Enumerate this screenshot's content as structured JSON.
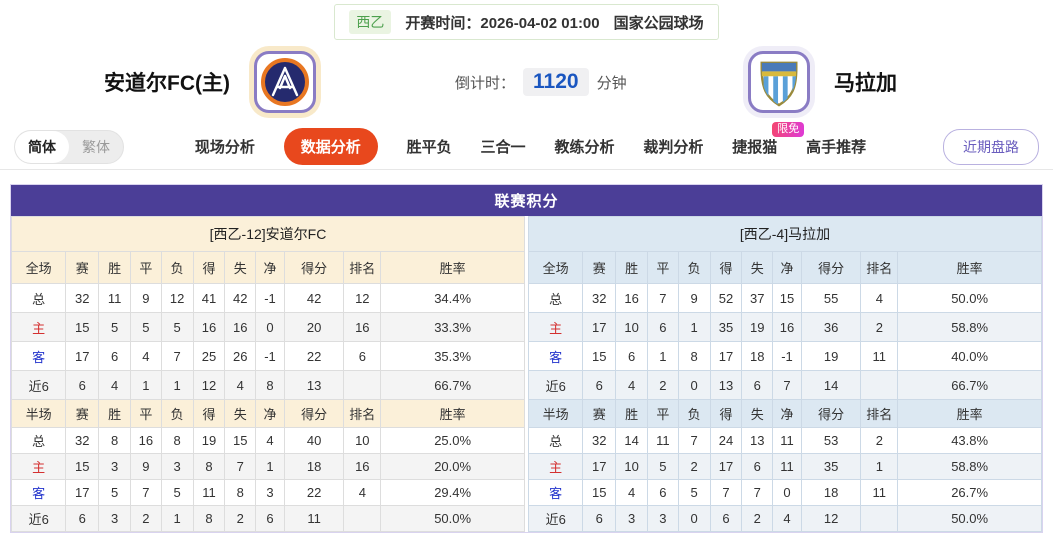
{
  "meta": {
    "league": "西乙",
    "kickoff_label": "开赛时间：",
    "kickoff_time": "2026-04-02 01:00",
    "venue": "国家公园球场"
  },
  "header": {
    "home_team": "安道尔FC(主)",
    "away_team": "马拉加",
    "countdown_label": "倒计时：",
    "countdown_value": "1120",
    "countdown_unit": "分钟",
    "icons": {
      "home_logo": "andorra-fc-crest",
      "away_logo": "malaga-crest"
    }
  },
  "nav": {
    "lang_toggle": {
      "simplified": "简体",
      "traditional": "繁体"
    },
    "items": [
      {
        "label": "现场分析",
        "active": false
      },
      {
        "label": "数据分析",
        "active": true
      },
      {
        "label": "胜平负",
        "active": false
      },
      {
        "label": "三合一",
        "active": false
      },
      {
        "label": "教练分析",
        "active": false
      },
      {
        "label": "裁判分析",
        "active": false
      },
      {
        "label": "捷报猫",
        "active": false,
        "badge": "限免"
      },
      {
        "label": "高手推荐",
        "active": false
      }
    ],
    "recent_button": "近期盘路"
  },
  "table": {
    "title": "联赛积分",
    "columns_full": [
      "全场",
      "赛",
      "胜",
      "平",
      "负",
      "得",
      "失",
      "净",
      "得分",
      "排名",
      "胜率"
    ],
    "columns_half": [
      "半场",
      "赛",
      "胜",
      "平",
      "负",
      "得",
      "失",
      "净",
      "得分",
      "排名",
      "胜率"
    ],
    "left": {
      "panel_title": "[西乙-12]安道尔FC",
      "full_rows": [
        {
          "label": "总",
          "type": "total",
          "values": [
            "32",
            "11",
            "9",
            "12",
            "41",
            "42",
            "-1",
            "42",
            "12",
            "34.4%"
          ]
        },
        {
          "label": "主",
          "type": "home",
          "values": [
            "15",
            "5",
            "5",
            "5",
            "16",
            "16",
            "0",
            "20",
            "16",
            "33.3%"
          ]
        },
        {
          "label": "客",
          "type": "away",
          "values": [
            "17",
            "6",
            "4",
            "7",
            "25",
            "26",
            "-1",
            "22",
            "6",
            "35.3%"
          ]
        },
        {
          "label": "近6",
          "type": "recent",
          "values": [
            "6",
            "4",
            "1",
            "1",
            "12",
            "4",
            "8",
            "13",
            "",
            "66.7%"
          ]
        }
      ],
      "half_rows": [
        {
          "label": "总",
          "type": "total",
          "values": [
            "32",
            "8",
            "16",
            "8",
            "19",
            "15",
            "4",
            "40",
            "10",
            "25.0%"
          ]
        },
        {
          "label": "主",
          "type": "home",
          "values": [
            "15",
            "3",
            "9",
            "3",
            "8",
            "7",
            "1",
            "18",
            "16",
            "20.0%"
          ]
        },
        {
          "label": "客",
          "type": "away",
          "values": [
            "17",
            "5",
            "7",
            "5",
            "11",
            "8",
            "3",
            "22",
            "4",
            "29.4%"
          ]
        },
        {
          "label": "近6",
          "type": "recent",
          "values": [
            "6",
            "3",
            "2",
            "1",
            "8",
            "2",
            "6",
            "11",
            "",
            "50.0%"
          ]
        }
      ]
    },
    "right": {
      "panel_title": "[西乙-4]马拉加",
      "full_rows": [
        {
          "label": "总",
          "type": "total",
          "values": [
            "32",
            "16",
            "7",
            "9",
            "52",
            "37",
            "15",
            "55",
            "4",
            "50.0%"
          ]
        },
        {
          "label": "主",
          "type": "home",
          "values": [
            "17",
            "10",
            "6",
            "1",
            "35",
            "19",
            "16",
            "36",
            "2",
            "58.8%"
          ]
        },
        {
          "label": "客",
          "type": "away",
          "values": [
            "15",
            "6",
            "1",
            "8",
            "17",
            "18",
            "-1",
            "19",
            "11",
            "40.0%"
          ]
        },
        {
          "label": "近6",
          "type": "recent",
          "values": [
            "6",
            "4",
            "2",
            "0",
            "13",
            "6",
            "7",
            "14",
            "",
            "66.7%"
          ]
        }
      ],
      "half_rows": [
        {
          "label": "总",
          "type": "total",
          "values": [
            "32",
            "14",
            "11",
            "7",
            "24",
            "13",
            "11",
            "53",
            "2",
            "43.8%"
          ]
        },
        {
          "label": "主",
          "type": "home",
          "values": [
            "17",
            "10",
            "5",
            "2",
            "17",
            "6",
            "11",
            "35",
            "1",
            "58.8%"
          ]
        },
        {
          "label": "客",
          "type": "away",
          "values": [
            "15",
            "4",
            "6",
            "5",
            "7",
            "7",
            "0",
            "18",
            "11",
            "26.7%"
          ]
        },
        {
          "label": "近6",
          "type": "recent",
          "values": [
            "6",
            "3",
            "3",
            "0",
            "6",
            "2",
            "4",
            "12",
            "",
            "50.0%"
          ]
        }
      ]
    }
  },
  "colors": {
    "table_header_purple": "#4b3e97",
    "home_panel_cream": "#fbf0d9",
    "away_panel_blue": "#dce8f2",
    "active_tab_orange": "#e8481d",
    "badge_pink_gradient": [
      "#f4466f",
      "#dd3ad8"
    ],
    "countdown_blue": "#1a56c0",
    "league_green": "#4da04d",
    "home_row_red": "#d43030",
    "away_row_blue": "#2233cc",
    "recent_button_purple": "#6a5dbe"
  }
}
